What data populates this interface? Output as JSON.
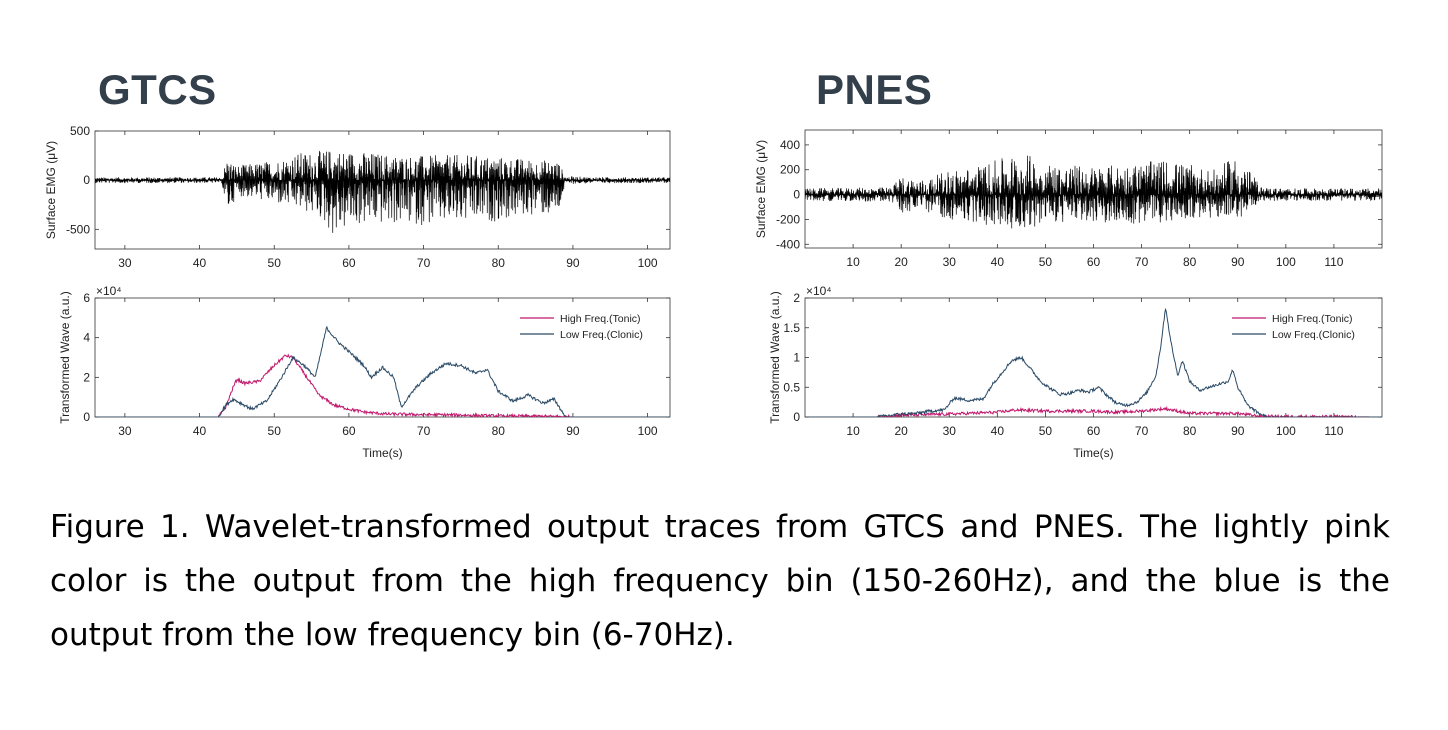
{
  "panels": {
    "gtcs_title": "GTCS",
    "pnes_title": "PNES"
  },
  "caption": "Figure 1. Wavelet-transformed output traces from GTCS and PNES. The lightly pink color is the output from the high frequency bin (150-260Hz), and the blue is the output from the low frequency bin (6-70Hz).",
  "colors": {
    "emg": "#000000",
    "high_freq": "#c0186c",
    "low_freq": "#2a4a66"
  },
  "chart_data": [
    {
      "id": "gtcs_emg",
      "type": "line",
      "title": "",
      "xlabel": "",
      "ylabel": "Surface EMG (μV)",
      "xlim": [
        26,
        103
      ],
      "ylim": [
        -700,
        500
      ],
      "xticks": [
        30,
        40,
        50,
        60,
        70,
        80,
        90,
        100
      ],
      "yticks": [
        -500,
        0,
        500
      ],
      "series": [
        {
          "kind": "emg_envelope",
          "x": [
            26,
            43,
            43.6,
            45,
            48,
            51,
            53,
            56,
            58,
            60,
            62,
            66,
            70,
            75,
            80,
            85,
            88,
            89,
            95,
            103
          ],
          "y_max": [
            30,
            30,
            230,
            150,
            180,
            220,
            280,
            300,
            320,
            300,
            290,
            260,
            250,
            260,
            240,
            210,
            200,
            40,
            30,
            30
          ],
          "y_min": [
            -30,
            -30,
            -370,
            -160,
            -200,
            -260,
            -300,
            -380,
            -580,
            -480,
            -460,
            -450,
            -460,
            -450,
            -420,
            -350,
            -380,
            -40,
            -30,
            -30
          ]
        }
      ]
    },
    {
      "id": "gtcs_wave",
      "type": "line",
      "title": "",
      "xlabel": "Time(s)",
      "ylabel": "Transformed Wave (a.u.)",
      "y_exponent": "×10⁴",
      "xlim": [
        26,
        103
      ],
      "ylim": [
        0,
        6
      ],
      "xticks": [
        30,
        40,
        50,
        60,
        70,
        80,
        90,
        100
      ],
      "yticks": [
        0,
        2,
        4,
        6
      ],
      "legend": {
        "position": "top-right",
        "entries": [
          "High Freq.(Tonic)",
          "Low Freq.(Clonic)"
        ]
      },
      "series": [
        {
          "name": "High Freq.(Tonic)",
          "color_key": "high_freq",
          "x": [
            26,
            42.5,
            43.5,
            44.5,
            45,
            46,
            48,
            50,
            51.5,
            52.5,
            54,
            56,
            58,
            60,
            62,
            65,
            70,
            75,
            80,
            85,
            89,
            90,
            103
          ],
          "y": [
            0,
            0,
            0.5,
            1.5,
            1.9,
            1.7,
            1.8,
            2.6,
            3.1,
            3.0,
            2.2,
            1.1,
            0.6,
            0.4,
            0.25,
            0.15,
            0.12,
            0.1,
            0.05,
            0.04,
            0.02,
            0,
            0
          ]
        },
        {
          "name": "Low Freq.(Clonic)",
          "color_key": "low_freq",
          "x": [
            26,
            42.5,
            43.5,
            44.5,
            45.5,
            47,
            49,
            51,
            52.5,
            54,
            55.5,
            57,
            58.5,
            60,
            62,
            63,
            64.5,
            66,
            67,
            69,
            71,
            73,
            75,
            77,
            78.5,
            80,
            82,
            84,
            86,
            87.5,
            89,
            103
          ],
          "y": [
            0,
            0,
            0.6,
            0.9,
            0.7,
            0.4,
            0.8,
            2.0,
            3.0,
            2.6,
            2.0,
            4.5,
            3.8,
            3.3,
            2.6,
            2.0,
            2.5,
            2.0,
            0.5,
            1.5,
            2.2,
            2.7,
            2.6,
            2.2,
            2.4,
            1.3,
            0.8,
            1.1,
            0.7,
            0.9,
            0,
            0
          ]
        }
      ]
    },
    {
      "id": "pnes_emg",
      "type": "line",
      "title": "",
      "xlabel": "",
      "ylabel": "Surface EMG (μV)",
      "xlim": [
        0,
        120
      ],
      "ylim": [
        -430,
        520
      ],
      "xticks": [
        10,
        20,
        30,
        40,
        50,
        60,
        70,
        80,
        90,
        100,
        110
      ],
      "yticks": [
        -400,
        -200,
        0,
        200,
        400
      ],
      "series": [
        {
          "kind": "emg_envelope",
          "x": [
            0,
            18,
            20,
            25,
            30,
            35,
            40,
            45,
            50,
            55,
            60,
            65,
            70,
            75,
            80,
            85,
            90,
            95,
            100,
            120
          ],
          "y_max": [
            50,
            60,
            150,
            120,
            200,
            220,
            280,
            350,
            260,
            240,
            230,
            240,
            260,
            280,
            240,
            200,
            320,
            60,
            50,
            50
          ],
          "y_min": [
            -50,
            -60,
            -150,
            -140,
            -200,
            -230,
            -260,
            -280,
            -240,
            -230,
            -220,
            -230,
            -260,
            -220,
            -200,
            -190,
            -200,
            -60,
            -50,
            -50
          ]
        }
      ]
    },
    {
      "id": "pnes_wave",
      "type": "line",
      "title": "",
      "xlabel": "Time(s)",
      "ylabel": "Transformed Wave (a.u.)",
      "y_exponent": "×10⁴",
      "xlim": [
        0,
        120
      ],
      "ylim": [
        0,
        2
      ],
      "xticks": [
        10,
        20,
        30,
        40,
        50,
        60,
        70,
        80,
        90,
        100,
        110
      ],
      "yticks": [
        0,
        0.5,
        1,
        1.5,
        2
      ],
      "legend": {
        "position": "top-right",
        "entries": [
          "High Freq.(Tonic)",
          "Low Freq.(Clonic)"
        ]
      },
      "series": [
        {
          "name": "High Freq.(Tonic)",
          "color_key": "high_freq",
          "x": [
            0,
            15,
            20,
            30,
            40,
            44,
            50,
            60,
            65,
            70,
            75,
            80,
            90,
            95,
            120
          ],
          "y": [
            0,
            0,
            0.03,
            0.05,
            0.08,
            0.12,
            0.1,
            0.1,
            0.08,
            0.1,
            0.14,
            0.06,
            0.06,
            0.01,
            0
          ]
        },
        {
          "name": "Low Freq.(Clonic)",
          "color_key": "low_freq",
          "x": [
            0,
            15,
            18,
            20,
            23,
            26,
            29,
            31,
            34,
            37,
            39,
            41,
            43,
            45,
            47,
            49,
            51,
            53,
            55,
            57,
            59,
            61,
            63,
            65,
            67,
            69,
            71,
            73,
            74,
            75,
            76,
            77.5,
            78.5,
            80,
            82,
            84,
            86,
            88,
            89,
            90,
            92,
            94,
            96,
            120
          ],
          "y": [
            0,
            0,
            0.03,
            0.05,
            0.06,
            0.1,
            0.12,
            0.32,
            0.28,
            0.3,
            0.55,
            0.75,
            0.95,
            1.0,
            0.8,
            0.6,
            0.48,
            0.38,
            0.4,
            0.45,
            0.42,
            0.5,
            0.35,
            0.22,
            0.2,
            0.25,
            0.4,
            0.7,
            1.2,
            1.85,
            1.3,
            0.7,
            0.95,
            0.6,
            0.45,
            0.5,
            0.55,
            0.6,
            0.8,
            0.5,
            0.2,
            0.08,
            0,
            0
          ]
        }
      ]
    }
  ]
}
